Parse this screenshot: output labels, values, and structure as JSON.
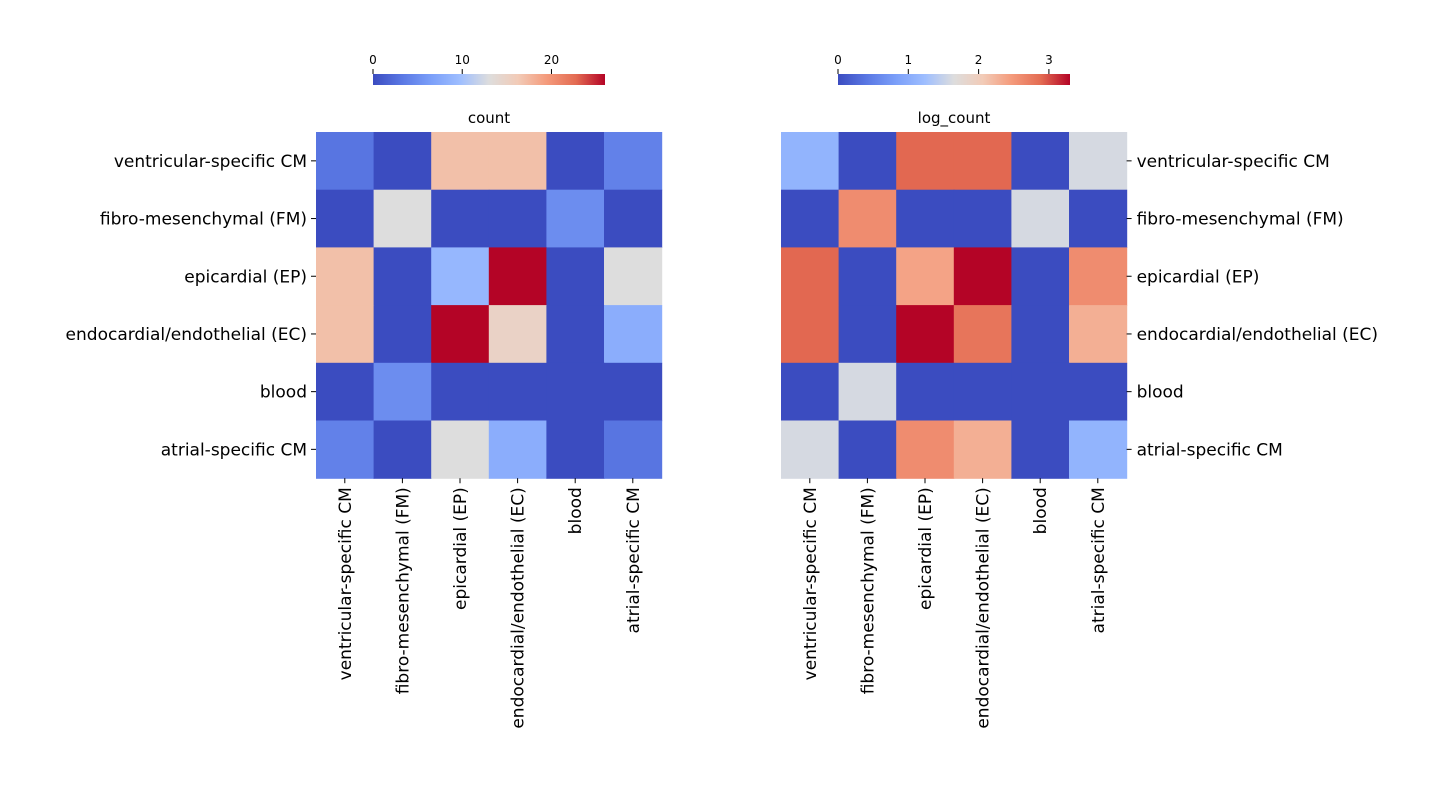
{
  "chart_data": [
    {
      "type": "heatmap",
      "title": "count",
      "row_labels": [
        "ventricular-specific CM",
        "fibro-mesenchymal (FM)",
        "epicardial (EP)",
        "endocardial/endothelial (EC)",
        "blood",
        "atrial-specific CM"
      ],
      "col_labels": [
        "ventricular-specific CM",
        "fibro-mesenchymal (FM)",
        "epicardial (EP)",
        "endocardial/endothelial (EC)",
        "blood",
        "atrial-specific CM"
      ],
      "values": [
        [
          3,
          0,
          17,
          17,
          0,
          4
        ],
        [
          0,
          13,
          0,
          0,
          5,
          0
        ],
        [
          17,
          0,
          9,
          26,
          0,
          13
        ],
        [
          17,
          0,
          26,
          15,
          0,
          8
        ],
        [
          0,
          5,
          0,
          0,
          0,
          0
        ],
        [
          4,
          0,
          13,
          8,
          0,
          3
        ]
      ],
      "colormap": "coolwarm",
      "vmin": 0,
      "vmax": 26,
      "colorbar_ticks": [
        0,
        10,
        20
      ],
      "colorbar_position": "top",
      "row_label_side": "left"
    },
    {
      "type": "heatmap",
      "title": "log_count",
      "row_labels": [
        "ventricular-specific CM",
        "fibro-mesenchymal (FM)",
        "epicardial (EP)",
        "endocardial/endothelial (EC)",
        "blood",
        "atrial-specific CM"
      ],
      "col_labels": [
        "ventricular-specific CM",
        "fibro-mesenchymal (FM)",
        "epicardial (EP)",
        "endocardial/endothelial (EC)",
        "blood",
        "atrial-specific CM"
      ],
      "values": [
        [
          1.1,
          0,
          2.9,
          2.9,
          0,
          1.6
        ],
        [
          0,
          2.6,
          0,
          0,
          1.6,
          0
        ],
        [
          2.9,
          0,
          2.4,
          3.3,
          0,
          2.6
        ],
        [
          2.9,
          0,
          3.3,
          2.8,
          0,
          2.3
        ],
        [
          0,
          1.6,
          0,
          0,
          0,
          0
        ],
        [
          1.6,
          0,
          2.6,
          2.3,
          0,
          1.1
        ]
      ],
      "colormap": "coolwarm",
      "vmin": 0,
      "vmax": 3.3,
      "colorbar_ticks": [
        0,
        1,
        2,
        3
      ],
      "colorbar_position": "top",
      "row_label_side": "right"
    }
  ]
}
